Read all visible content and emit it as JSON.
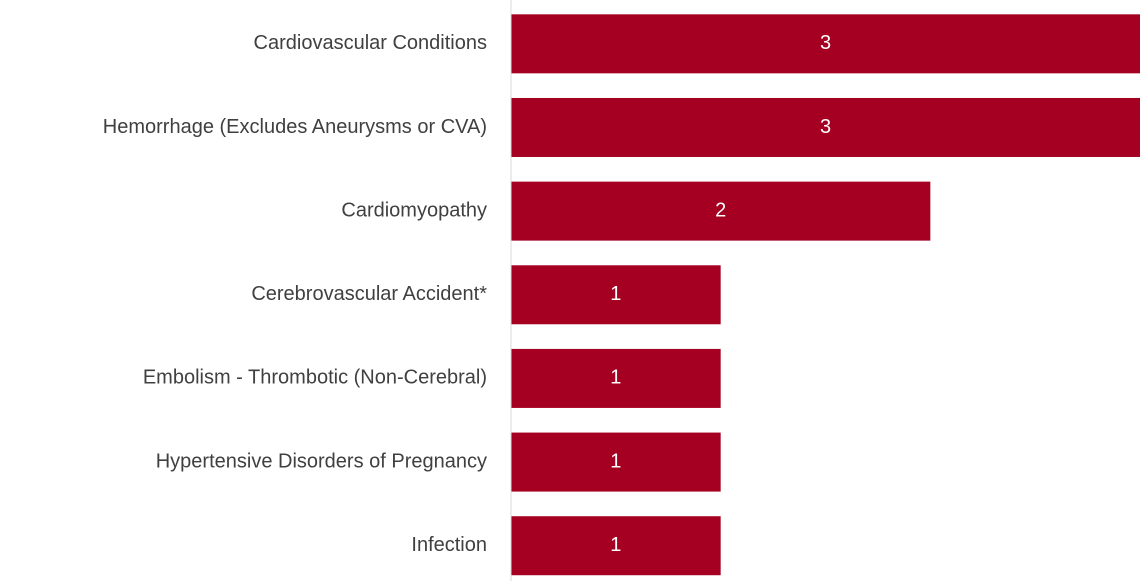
{
  "chart_data": {
    "type": "bar",
    "orientation": "horizontal",
    "categories": [
      "Cardiovascular Conditions",
      "Hemorrhage (Excludes Aneurysms or CVA)",
      "Cardiomyopathy",
      "Cerebrovascular Accident*",
      "Embolism - Thrombotic (Non-Cerebral)",
      "Hypertensive Disorders of Pregnancy",
      "Infection"
    ],
    "values": [
      3,
      3,
      2,
      1,
      1,
      1,
      1
    ],
    "color": "#a50021",
    "xlim": [
      0,
      3
    ]
  }
}
